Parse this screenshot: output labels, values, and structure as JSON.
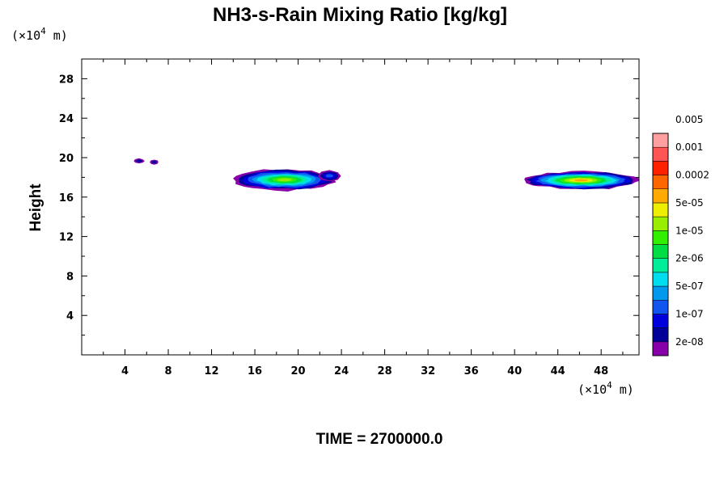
{
  "chart_data": {
    "type": "heatmap",
    "title": "NH3-s-Rain Mixing Ratio [kg/kg]",
    "xlabel": "",
    "ylabel": "Height",
    "x_unit": {
      "prefix": "(×10",
      "exp": "4",
      "suffix": " m)"
    },
    "y_unit": {
      "prefix": "(×10",
      "exp": "4",
      "suffix": " m)"
    },
    "xlim": [
      0,
      51.5
    ],
    "ylim": [
      0,
      30
    ],
    "x_ticks": [
      "4",
      "8",
      "12",
      "16",
      "20",
      "24",
      "28",
      "32",
      "36",
      "40",
      "44",
      "48"
    ],
    "y_ticks": [
      "4",
      "8",
      "12",
      "16",
      "20",
      "24",
      "28"
    ],
    "colorbar": {
      "labels": [
        "2e-08",
        "1e-07",
        "5e-07",
        "2e-06",
        "1e-05",
        "5e-05",
        "0.0002",
        "0.001",
        "0.005"
      ],
      "colors": [
        "#8800aa",
        "#000099",
        "#0000dd",
        "#1155ee",
        "#0099ee",
        "#00ddee",
        "#00ee99",
        "#00dd44",
        "#33ee00",
        "#99ee00",
        "#eeee00",
        "#ffaa00",
        "#ff6600",
        "#ff2200",
        "#ff5555",
        "#ffa0a0"
      ]
    },
    "regions": [
      {
        "x": [
          4.8,
          5.8
        ],
        "y": [
          19.4,
          19.9
        ],
        "peak": 1
      },
      {
        "x": [
          6.3,
          7.1
        ],
        "y": [
          19.3,
          19.8
        ],
        "peak": 1
      },
      {
        "x": [
          14.0,
          23.5
        ],
        "y": [
          16.7,
          18.8
        ],
        "peak": 9
      },
      {
        "x": [
          21.8,
          24.0
        ],
        "y": [
          17.6,
          18.7
        ],
        "peak": 3
      },
      {
        "x": [
          40.8,
          51.5
        ],
        "y": [
          16.8,
          18.6
        ],
        "peak": 11
      }
    ]
  },
  "time_label": "TIME = 2700000.0"
}
